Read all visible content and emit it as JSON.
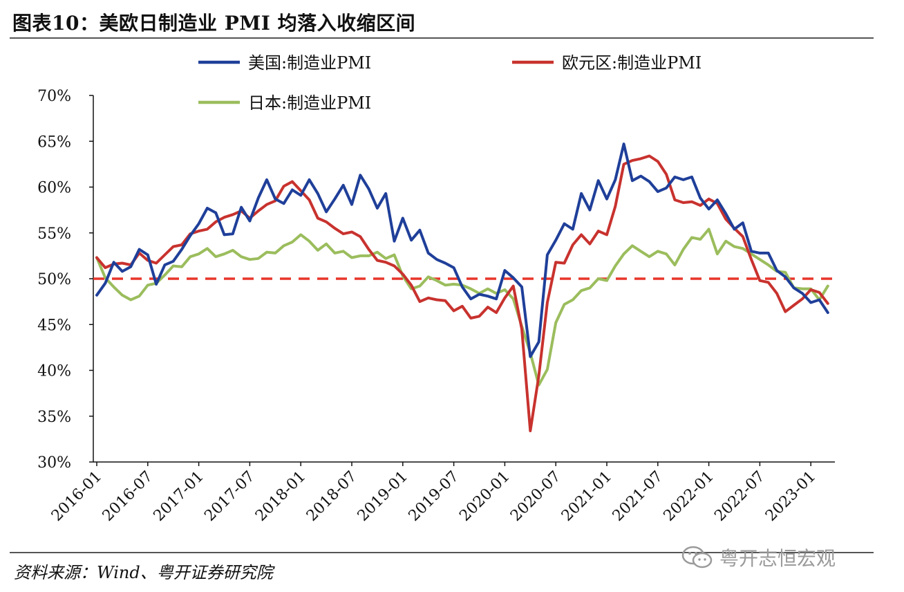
{
  "header": {
    "title": "图表10：美欧日制造业 PMI 均落入收缩区间"
  },
  "footer": {
    "source": "资料来源：Wind、粤开证券研究院",
    "watermark": "粤开志恒宏观"
  },
  "chart_data": {
    "type": "line",
    "title": "",
    "xlabel": "",
    "ylabel": "",
    "ylim": [
      30,
      70
    ],
    "y_ticks": [
      "30%",
      "35%",
      "40%",
      "45%",
      "50%",
      "55%",
      "60%",
      "65%",
      "70%"
    ],
    "x_ticks": [
      "2016-01",
      "2016-07",
      "2017-01",
      "2017-07",
      "2018-01",
      "2018-07",
      "2019-01",
      "2019-07",
      "2020-01",
      "2020-07",
      "2021-01",
      "2021-07",
      "2022-01",
      "2022-07",
      "2023-01"
    ],
    "x_start": "2016-01",
    "x_end": "2023-03",
    "reference_line": {
      "value": 50,
      "color": "#e8352b",
      "style": "dashed"
    },
    "legend_position": "top",
    "series": [
      {
        "name": "美国:制造业PMI",
        "color": "#1f3f99",
        "values": [
          48.2,
          49.5,
          51.8,
          50.8,
          51.3,
          53.2,
          52.6,
          49.4,
          51.5,
          51.9,
          53.2,
          54.7,
          56.0,
          57.7,
          57.2,
          54.8,
          54.9,
          57.8,
          56.3,
          58.8,
          60.8,
          58.7,
          58.2,
          59.7,
          59.1,
          60.8,
          59.3,
          57.3,
          58.7,
          60.2,
          58.1,
          61.3,
          59.8,
          57.7,
          59.3,
          54.1,
          56.6,
          54.2,
          55.3,
          52.8,
          52.1,
          51.7,
          51.2,
          49.1,
          47.8,
          48.3,
          48.1,
          47.8,
          50.9,
          50.1,
          49.1,
          41.5,
          43.1,
          52.6,
          54.2,
          56.0,
          55.4,
          59.3,
          57.5,
          60.7,
          58.7,
          60.8,
          64.7,
          60.7,
          61.2,
          60.6,
          59.5,
          59.9,
          61.1,
          60.8,
          61.1,
          58.8,
          57.6,
          58.6,
          57.1,
          55.4,
          56.1,
          53.0,
          52.8,
          52.8,
          50.9,
          50.2,
          49.0,
          48.4,
          47.4,
          47.7,
          46.3
        ],
        "data_labels": []
      },
      {
        "name": "欧元区:制造业PMI",
        "color": "#c8322e",
        "values": [
          52.3,
          51.2,
          51.6,
          51.7,
          51.5,
          52.8,
          52.0,
          51.7,
          52.6,
          53.5,
          53.7,
          54.9,
          55.2,
          55.4,
          56.2,
          56.7,
          57.0,
          57.4,
          56.6,
          57.4,
          58.1,
          58.5,
          60.1,
          60.6,
          59.6,
          58.6,
          56.6,
          56.2,
          55.5,
          54.9,
          55.1,
          54.6,
          53.2,
          52.0,
          51.8,
          51.4,
          50.5,
          49.3,
          47.5,
          47.9,
          47.7,
          47.6,
          46.5,
          47.0,
          45.7,
          45.9,
          46.9,
          46.3,
          47.9,
          49.2,
          44.5,
          33.4,
          39.4,
          47.4,
          51.8,
          51.7,
          53.7,
          54.8,
          53.8,
          55.2,
          54.8,
          57.9,
          62.5,
          62.9,
          63.1,
          63.4,
          62.8,
          61.4,
          58.6,
          58.3,
          58.4,
          58.0,
          58.7,
          58.2,
          56.5,
          55.5,
          54.6,
          52.1,
          49.8,
          49.6,
          48.4,
          46.4,
          47.1,
          47.8,
          48.8,
          48.5,
          47.3
        ],
        "data_labels": []
      },
      {
        "name": "日本:制造业PMI",
        "color": "#9bbd5d",
        "values": [
          52.3,
          50.1,
          49.1,
          48.2,
          47.7,
          48.1,
          49.3,
          49.5,
          50.4,
          51.4,
          51.3,
          52.4,
          52.7,
          53.3,
          52.4,
          52.7,
          53.1,
          52.4,
          52.1,
          52.2,
          52.9,
          52.8,
          53.6,
          54.0,
          54.8,
          54.1,
          53.1,
          53.8,
          52.8,
          53.0,
          52.3,
          52.5,
          52.5,
          52.9,
          52.2,
          52.6,
          50.3,
          48.9,
          49.2,
          50.2,
          49.8,
          49.3,
          49.4,
          49.3,
          48.9,
          48.4,
          48.9,
          48.4,
          48.8,
          47.8,
          44.8,
          41.9,
          38.4,
          40.1,
          45.2,
          47.2,
          47.7,
          48.7,
          49.0,
          50.0,
          49.8,
          51.4,
          52.7,
          53.6,
          53.0,
          52.4,
          53.0,
          52.7,
          51.5,
          53.2,
          54.5,
          54.3,
          55.4,
          52.7,
          54.1,
          53.5,
          53.3,
          52.7,
          52.1,
          51.5,
          50.8,
          50.7,
          49.0,
          48.9,
          48.9,
          47.7,
          49.2
        ],
        "data_labels": []
      }
    ]
  }
}
